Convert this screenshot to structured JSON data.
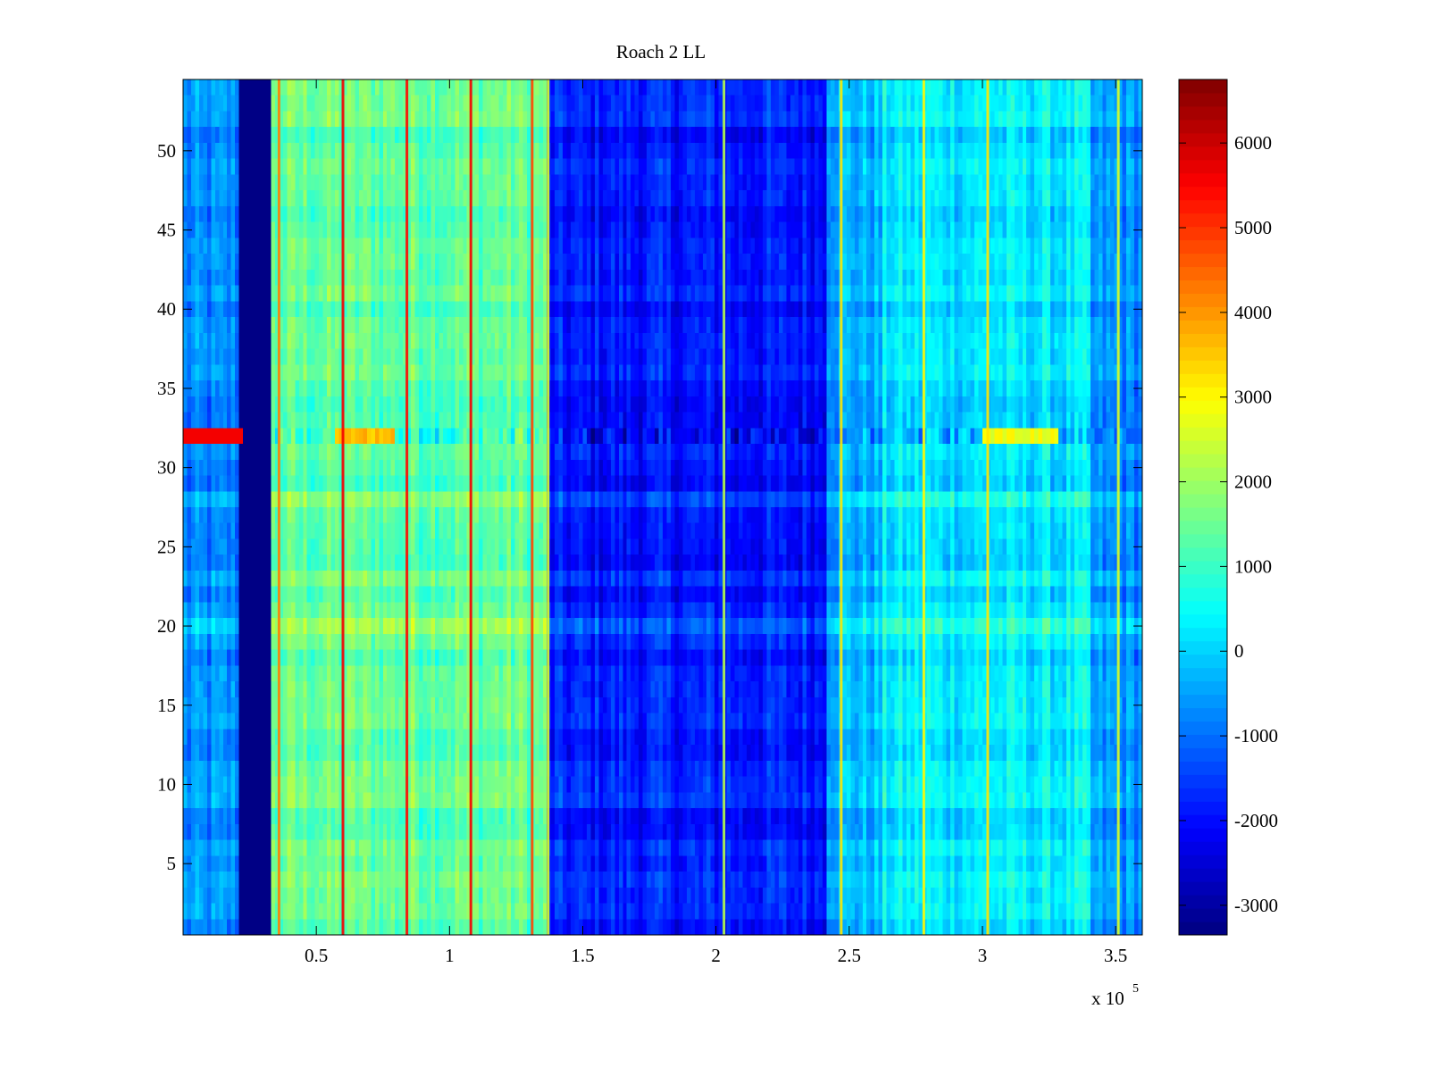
{
  "chart_data": {
    "type": "heatmap",
    "title": "Roach 2 LL",
    "xlabel": "",
    "ylabel": "",
    "xlim": [
      0,
      360000
    ],
    "ylim": [
      0.5,
      54.5
    ],
    "x_exponent_label": "x 10",
    "x_exponent": "5",
    "x_ticks": [
      {
        "value": 50000,
        "label": "0.5"
      },
      {
        "value": 100000,
        "label": "1"
      },
      {
        "value": 150000,
        "label": "1.5"
      },
      {
        "value": 200000,
        "label": "2"
      },
      {
        "value": 250000,
        "label": "2.5"
      },
      {
        "value": 300000,
        "label": "3"
      },
      {
        "value": 350000,
        "label": "3.5"
      }
    ],
    "y_ticks": [
      {
        "value": 5,
        "label": "5"
      },
      {
        "value": 10,
        "label": "10"
      },
      {
        "value": 15,
        "label": "15"
      },
      {
        "value": 20,
        "label": "20"
      },
      {
        "value": 25,
        "label": "25"
      },
      {
        "value": 30,
        "label": "30"
      },
      {
        "value": 35,
        "label": "35"
      },
      {
        "value": 40,
        "label": "40"
      },
      {
        "value": 45,
        "label": "45"
      },
      {
        "value": 50,
        "label": "50"
      }
    ],
    "colorbar": {
      "colormap": "jet",
      "clim": [
        -3350,
        6750
      ],
      "ticks": [
        {
          "value": 6000,
          "label": "6000"
        },
        {
          "value": 5000,
          "label": "5000"
        },
        {
          "value": 4000,
          "label": "4000"
        },
        {
          "value": 3000,
          "label": "3000"
        },
        {
          "value": 2000,
          "label": "2000"
        },
        {
          "value": 1000,
          "label": "1000"
        },
        {
          "value": 0,
          "label": "0"
        },
        {
          "value": -1000,
          "label": "-1000"
        },
        {
          "value": -2000,
          "label": "-2000"
        },
        {
          "value": -3000,
          "label": "-3000"
        }
      ]
    },
    "rows": 54,
    "column_regions": [
      {
        "x_range": [
          0,
          21000
        ],
        "value": -800
      },
      {
        "x_range": [
          21000,
          33000
        ],
        "value": -3300
      },
      {
        "x_range": [
          33000,
          137000
        ],
        "value": 1400
      },
      {
        "x_range": [
          137000,
          242000
        ],
        "value": -1900
      },
      {
        "x_range": [
          242000,
          262000
        ],
        "value": -300
      },
      {
        "x_range": [
          262000,
          340000
        ],
        "value": 200
      },
      {
        "x_range": [
          340000,
          360000
        ],
        "value": -700
      }
    ],
    "strong_lines": [
      {
        "x": 36000,
        "value": 4200
      },
      {
        "x": 60000,
        "value": 5600
      },
      {
        "x": 84000,
        "value": 5400
      },
      {
        "x": 108000,
        "value": 5600
      },
      {
        "x": 131000,
        "value": 4800
      },
      {
        "x": 137000,
        "value": 2600
      },
      {
        "x": 203000,
        "value": 2200
      },
      {
        "x": 247000,
        "value": 3200
      },
      {
        "x": 278000,
        "value": 3000
      },
      {
        "x": 302000,
        "value": 3200
      },
      {
        "x": 351000,
        "value": 2600
      }
    ],
    "hot_row": {
      "row": 32,
      "x_range": [
        0,
        22000
      ],
      "value": 5600
    },
    "hot_row_segments": [
      {
        "x_range": [
          57000,
          80000
        ],
        "value": 3600
      },
      {
        "x_range": [
          300000,
          328000
        ],
        "value": 2800
      }
    ],
    "bright_rows": [
      9,
      20,
      23,
      28
    ],
    "grid": false,
    "legend": "colorbar-right"
  }
}
